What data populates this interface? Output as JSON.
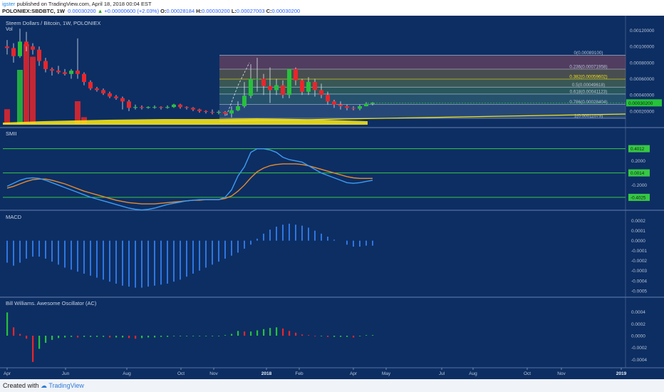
{
  "header": {
    "publisher": "igster",
    "published_text": "published on TradingView.com, April 18, 2018 00:04 EST",
    "symbol": "POLONIEX:SBDBTC, 1W",
    "last": "0.00030200",
    "change": "+0.00000600 (+2.03%)",
    "o": "0.00028184",
    "h": "0.00030200",
    "l": "0.00027003",
    "c": "0.00030200"
  },
  "footer": {
    "created_with": "Created with",
    "brand": "TradingView"
  },
  "colors": {
    "bg": "#0d2e63",
    "up": "#27c13c",
    "down": "#e8262b",
    "macd": "#2e76e0",
    "smi": "#3e9cf2",
    "smi_signal": "#e88b2c",
    "level": "#37c745",
    "ma": "#f2e219",
    "price_tag": "#27c13c"
  },
  "chart_data": [
    {
      "type": "candlestick",
      "title": "Steem Dollars / Bitcoin, 1W, POLONIEX",
      "volume_label": "Vol",
      "y_ticks": [
        "0.00120000",
        "0.00100000",
        "0.00080000",
        "0.00060000",
        "0.00040000",
        "0.00020000"
      ],
      "y_range": [
        4e-05,
        0.00124
      ],
      "current_price": "0.00030200",
      "x_ticks": [
        "Apr",
        "Jun",
        "Aug",
        "Oct",
        "Nov",
        "2018",
        "Feb",
        "Apr",
        "May",
        "Jul",
        "Aug",
        "Oct",
        "Nov",
        "2019"
      ],
      "candles": [
        [
          0.001,
          0.00098,
          0.00108,
          0.0009
        ],
        [
          0.00098,
          0.00088,
          0.00104,
          0.0008
        ],
        [
          0.00088,
          0.00106,
          0.00122,
          0.00086
        ],
        [
          0.00106,
          0.001,
          0.00118,
          0.00094
        ],
        [
          0.001,
          0.00096,
          0.00104,
          0.0009
        ],
        [
          0.00096,
          0.00082,
          0.001,
          0.00076
        ],
        [
          0.00082,
          0.00072,
          0.00086,
          0.00068
        ],
        [
          0.00072,
          0.0007,
          0.00074,
          0.00064
        ],
        [
          0.0007,
          0.00068,
          0.00076,
          0.00066
        ],
        [
          0.00068,
          0.00066,
          0.00072,
          0.00064
        ],
        [
          0.00066,
          0.0007,
          0.00072,
          0.0006
        ],
        [
          0.0007,
          0.00066,
          0.0011,
          0.0006
        ],
        [
          0.00066,
          0.00056,
          0.00068,
          0.00052
        ],
        [
          0.00056,
          0.00048,
          0.00058,
          0.00046
        ],
        [
          0.00048,
          0.00046,
          0.0005,
          0.00044
        ],
        [
          0.00046,
          0.00042,
          0.00048,
          0.0004
        ],
        [
          0.00042,
          0.00038,
          0.00044,
          0.00036
        ],
        [
          0.00038,
          0.00036,
          0.0004,
          0.00034
        ],
        [
          0.00036,
          0.00032,
          0.00038,
          0.00022
        ],
        [
          0.00032,
          0.00024,
          0.00034,
          0.0002
        ],
        [
          0.00024,
          0.00025,
          0.00028,
          0.00022
        ],
        [
          0.00025,
          0.00024,
          0.00027,
          0.00022
        ],
        [
          0.00024,
          0.00025,
          0.00026,
          0.00023
        ],
        [
          0.00025,
          0.00025,
          0.00027,
          0.00023
        ],
        [
          0.00025,
          0.00024,
          0.00026,
          0.00022
        ],
        [
          0.00024,
          0.00025,
          0.00027,
          0.00023
        ],
        [
          0.00025,
          0.00028,
          0.00029,
          0.00024
        ],
        [
          0.00028,
          0.00025,
          0.00029,
          0.00023
        ],
        [
          0.00025,
          0.00024,
          0.00026,
          0.00022
        ],
        [
          0.00024,
          0.00022,
          0.00025,
          0.0002
        ],
        [
          0.00022,
          0.0002,
          0.00023,
          0.00018
        ],
        [
          0.0002,
          0.00019,
          0.00021,
          0.00017
        ],
        [
          0.00019,
          0.00018,
          0.00022,
          0.00016
        ],
        [
          0.00018,
          0.00019,
          0.00021,
          0.00016
        ],
        [
          0.00019,
          0.00017,
          0.0002,
          0.00014
        ],
        [
          0.00017,
          0.00021,
          0.00026,
          0.00012
        ],
        [
          0.00021,
          0.00026,
          0.00032,
          0.0002
        ],
        [
          0.00026,
          0.00039,
          0.00056,
          0.00024
        ],
        [
          0.00039,
          0.0006,
          0.00078,
          0.00036
        ],
        [
          0.0006,
          0.0006,
          0.00086,
          0.00044
        ],
        [
          0.0006,
          0.00051,
          0.00066,
          0.0004
        ],
        [
          0.00051,
          0.00046,
          0.00074,
          0.0003
        ],
        [
          0.00046,
          0.00052,
          0.0006,
          0.0004
        ],
        [
          0.00052,
          0.0004,
          0.00058,
          0.00036
        ],
        [
          0.0004,
          0.00072,
          0.00072,
          0.00036
        ],
        [
          0.00072,
          0.00058,
          0.00074,
          0.00052
        ],
        [
          0.00058,
          0.00044,
          0.0006,
          0.0004
        ],
        [
          0.00044,
          0.00056,
          0.00062,
          0.0004
        ],
        [
          0.00056,
          0.00046,
          0.0006,
          0.00038
        ],
        [
          0.00046,
          0.0004,
          0.00054,
          0.00036
        ],
        [
          0.0004,
          0.00032,
          0.00044,
          0.00028
        ],
        [
          0.00032,
          0.00028,
          0.00034,
          0.00024
        ],
        [
          0.00028,
          0.00026,
          0.00032,
          0.00022
        ],
        [
          0.00026,
          0.00024,
          0.00028,
          0.00021
        ],
        [
          0.00024,
          0.00023,
          0.00026,
          0.00021
        ],
        [
          0.00023,
          0.00026,
          0.00028,
          0.00021
        ],
        [
          0.00026,
          0.00029,
          0.00031,
          0.00026
        ],
        [
          0.00029,
          0.0003,
          0.00031,
          0.00027
        ]
      ],
      "fib_levels": [
        {
          "label": "0(0.00089100)",
          "value": 0.000891
        },
        {
          "label": "0.236(0.00071958)",
          "value": 0.00071958
        },
        {
          "label": "0.382(0.00059602)",
          "value": 0.00059602
        },
        {
          "label": "0.5(0.00049618)",
          "value": 0.00049618
        },
        {
          "label": "0.618(0.00041123)",
          "value": 0.00041123
        },
        {
          "label": "0.786(0.00028404)",
          "value": 0.00028404
        },
        {
          "label": "1(0.00011079)",
          "value": 0.00011079
        }
      ]
    },
    {
      "type": "line",
      "title": "SMII",
      "y_ticks": [
        "0.2000",
        "-0.2000"
      ],
      "y_range": [
        -0.58,
        0.62
      ],
      "levels": [
        {
          "label": "0.4012",
          "value": 0.4012
        },
        {
          "label": "0.0014",
          "value": 0.0014
        },
        {
          "label": "-0.4025",
          "value": -0.4025
        }
      ],
      "series": [
        {
          "values": [
            -0.22,
            -0.17,
            -0.12,
            -0.09,
            -0.08,
            -0.09,
            -0.12,
            -0.16,
            -0.2,
            -0.24,
            -0.28,
            -0.32,
            -0.36,
            -0.4,
            -0.43,
            -0.46,
            -0.49,
            -0.52,
            -0.55,
            -0.58,
            -0.6,
            -0.61,
            -0.6,
            -0.58,
            -0.55,
            -0.52,
            -0.5,
            -0.48,
            -0.46,
            -0.45,
            -0.44,
            -0.44,
            -0.44,
            -0.44,
            -0.4,
            -0.28,
            -0.05,
            0.1,
            0.34,
            0.4,
            0.4,
            0.38,
            0.34,
            0.26,
            0.22,
            0.2,
            0.18,
            0.12,
            0.06,
            0.0,
            -0.04,
            -0.08,
            -0.12,
            -0.16,
            -0.17,
            -0.16,
            -0.14,
            -0.12
          ]
        },
        {
          "values": [
            -0.25,
            -0.22,
            -0.18,
            -0.14,
            -0.11,
            -0.1,
            -0.1,
            -0.12,
            -0.15,
            -0.18,
            -0.22,
            -0.26,
            -0.3,
            -0.33,
            -0.36,
            -0.39,
            -0.42,
            -0.45,
            -0.47,
            -0.49,
            -0.5,
            -0.51,
            -0.51,
            -0.51,
            -0.5,
            -0.49,
            -0.48,
            -0.47,
            -0.46,
            -0.45,
            -0.45,
            -0.44,
            -0.44,
            -0.44,
            -0.42,
            -0.38,
            -0.3,
            -0.2,
            -0.08,
            0.02,
            0.08,
            0.12,
            0.14,
            0.15,
            0.15,
            0.15,
            0.14,
            0.12,
            0.09,
            0.06,
            0.03,
            0.0,
            -0.03,
            -0.06,
            -0.08,
            -0.09,
            -0.09,
            -0.09
          ]
        }
      ]
    },
    {
      "type": "bar",
      "title": "MACD",
      "y_ticks": [
        "0.0002",
        "0.0001",
        "0.0000",
        "-0.0001",
        "-0.0002",
        "-0.0003",
        "-0.0004",
        "-0.0005"
      ],
      "y_range": [
        -0.00053,
        0.00024
      ],
      "values": [
        -0.00022,
        -0.00025,
        -0.00022,
        -0.00018,
        -0.00016,
        -0.00016,
        -0.00018,
        -0.00021,
        -0.00024,
        -0.00027,
        -0.00029,
        -0.00031,
        -0.00033,
        -0.00035,
        -0.00037,
        -0.00039,
        -0.00041,
        -0.00043,
        -0.00045,
        -0.00046,
        -0.00047,
        -0.00047,
        -0.00046,
        -0.00045,
        -0.00044,
        -0.00043,
        -0.00041,
        -0.00039,
        -0.00036,
        -0.00033,
        -0.0003,
        -0.00027,
        -0.00024,
        -0.00021,
        -0.00018,
        -0.00015,
        -0.00012,
        -8e-05,
        -4e-05,
        2e-05,
        7e-05,
        0.00011,
        0.00014,
        0.00016,
        0.00017,
        0.00016,
        0.00015,
        0.00013,
        0.0001,
        7e-05,
        4e-05,
        1e-05,
        0,
        -4e-05,
        -6e-05,
        -6e-05,
        -5e-05,
        -5e-05
      ]
    },
    {
      "type": "bar",
      "title": "Bill Williams. Awesome Oscillator (AC)",
      "y_ticks": [
        "0.0004",
        "0.0002",
        "0.0000",
        "-0.0002",
        "-0.0004"
      ],
      "y_range": [
        -0.00049,
        0.00049
      ],
      "values": [
        0.00039,
        0.00014,
        3e-05,
        -5e-05,
        -0.00044,
        -0.00022,
        -0.00012,
        -7e-05,
        -4e-05,
        -3e-05,
        -2e-05,
        -3e-05,
        -2e-05,
        -2e-05,
        -2e-05,
        -2e-05,
        -3e-05,
        -3e-05,
        -3e-05,
        -4e-05,
        -5e-05,
        -4e-05,
        -3e-05,
        -3e-05,
        -2e-05,
        -2e-05,
        -1e-05,
        -1e-05,
        -1e-05,
        -1e-05,
        -1e-05,
        -1e-05,
        -1e-05,
        -1e-05,
        1e-05,
        3e-05,
        8e-05,
        7e-05,
        7e-05,
        9e-05,
        0.00011,
        0.00013,
        0.00014,
        0.00012,
        8e-05,
        5e-05,
        2e-05,
        1e-05,
        -1e-05,
        -1e-05,
        -2e-05,
        -2e-05,
        -2e-05,
        -2e-05,
        -3e-05,
        -1e-05,
        1e-05,
        1e-05
      ]
    }
  ]
}
